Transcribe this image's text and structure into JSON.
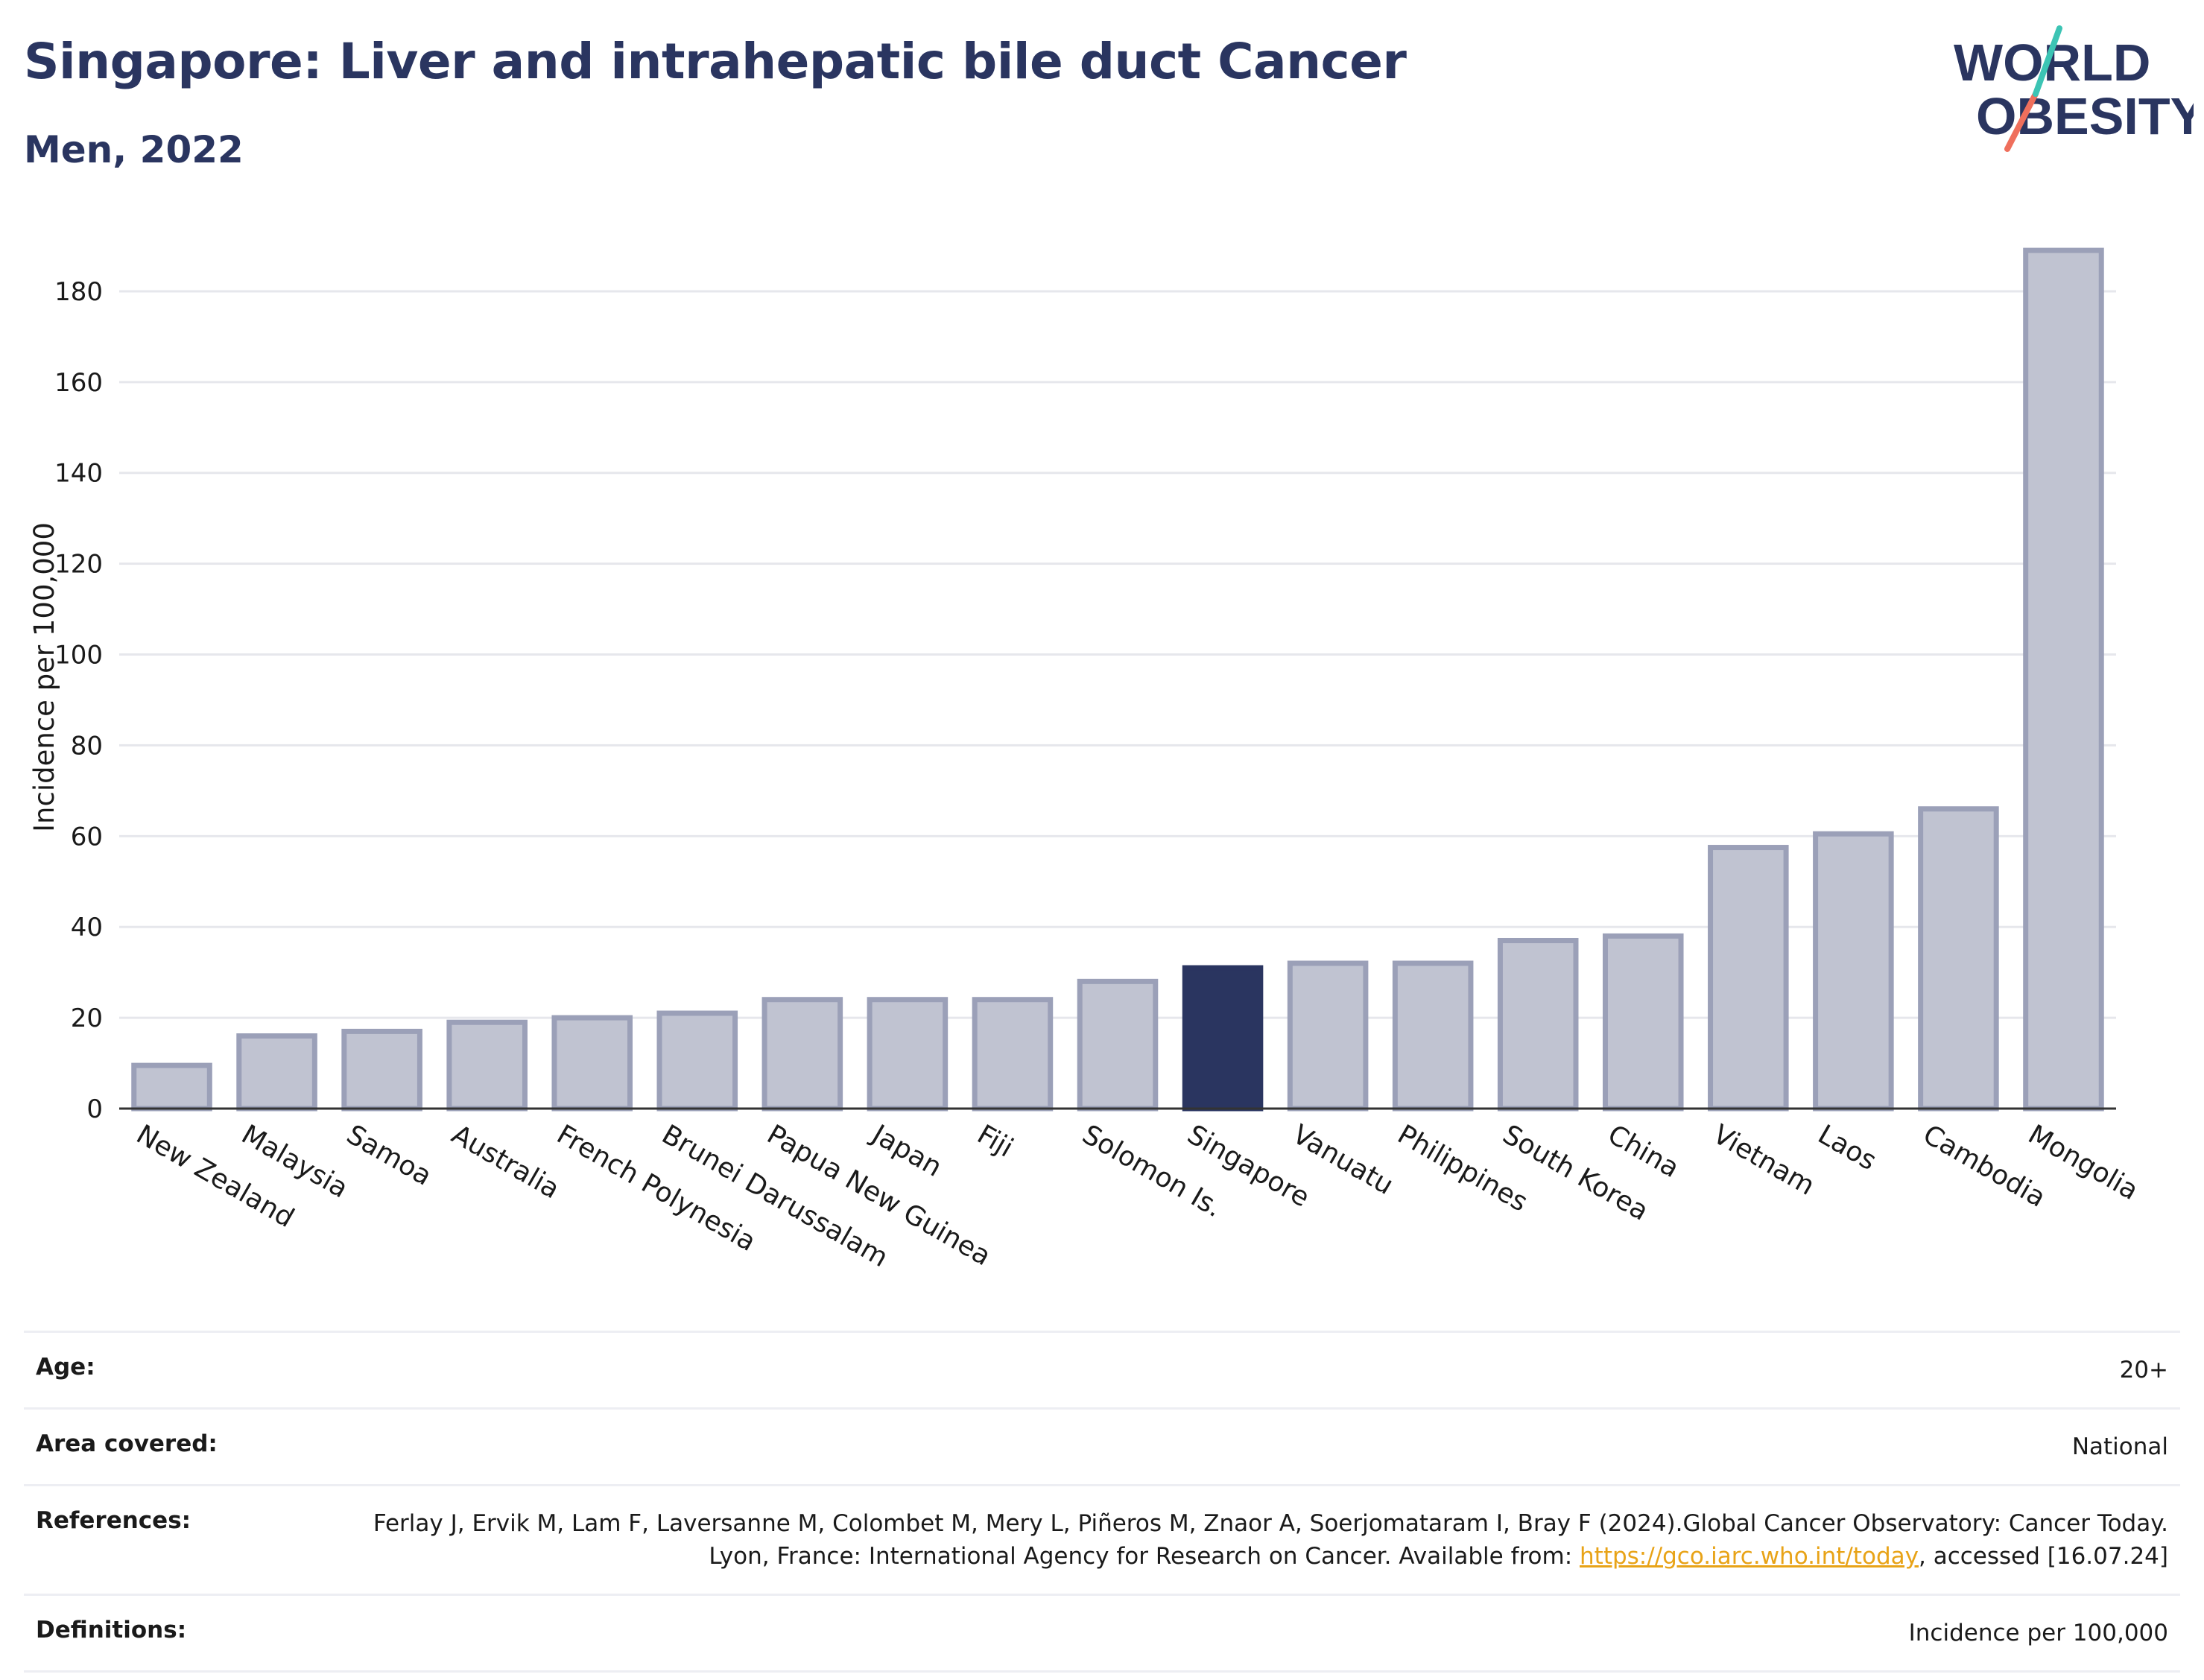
{
  "header": {
    "title": "Singapore: Liver and intrahepatic bile duct Cancer",
    "subtitle": "Men, 2022"
  },
  "logo": {
    "line1": "WORLD",
    "line2": "OBESITY",
    "text_color": "#2a3560",
    "slash_colors": [
      "#3cc4b4",
      "#ef6f5c"
    ]
  },
  "chart_data": {
    "type": "bar",
    "categories": [
      "New Zealand",
      "Malaysia",
      "Samoa",
      "Australia",
      "French Polynesia",
      "Brunei Darussalam",
      "Papua New Guinea",
      "Japan",
      "Fiji",
      "Solomon Is.",
      "Singapore",
      "Vanuatu",
      "Philippines",
      "South Korea",
      "China",
      "Vietnam",
      "Laos",
      "Cambodia",
      "Mongolia"
    ],
    "values": [
      9.5,
      16,
      17,
      19,
      20,
      21,
      24,
      24,
      24,
      28,
      31,
      32,
      32,
      37,
      38,
      57.5,
      60.5,
      66,
      189
    ],
    "highlight": "Singapore",
    "title": "",
    "xlabel": "",
    "ylabel": "Incidence per 100,000",
    "ylim": [
      0,
      190
    ],
    "yticks": [
      0,
      20,
      40,
      60,
      80,
      100,
      120,
      140,
      160,
      180
    ],
    "grid": true,
    "bar_color": "#c0c3d1",
    "bar_edge_color": "#9ba0b8",
    "highlight_color": "#2a3560"
  },
  "info": [
    {
      "label": "Age:",
      "value": "20+"
    },
    {
      "label": "Area covered:",
      "value": "National"
    },
    {
      "label": "References:",
      "value": "Ferlay J, Ervik M, Lam F, Laversanne M, Colombet M, Mery L, Piñeros M, Znaor A, Soerjomataram I, Bray F (2024).Global Cancer Observatory: Cancer Today. Lyon, France: International Agency for Research on Cancer. Available from:",
      "link": "https://gco.iarc.who.int/today",
      "value_after": ", accessed [16.07.24]"
    },
    {
      "label": "Definitions:",
      "value": "Incidence per 100,000"
    }
  ]
}
